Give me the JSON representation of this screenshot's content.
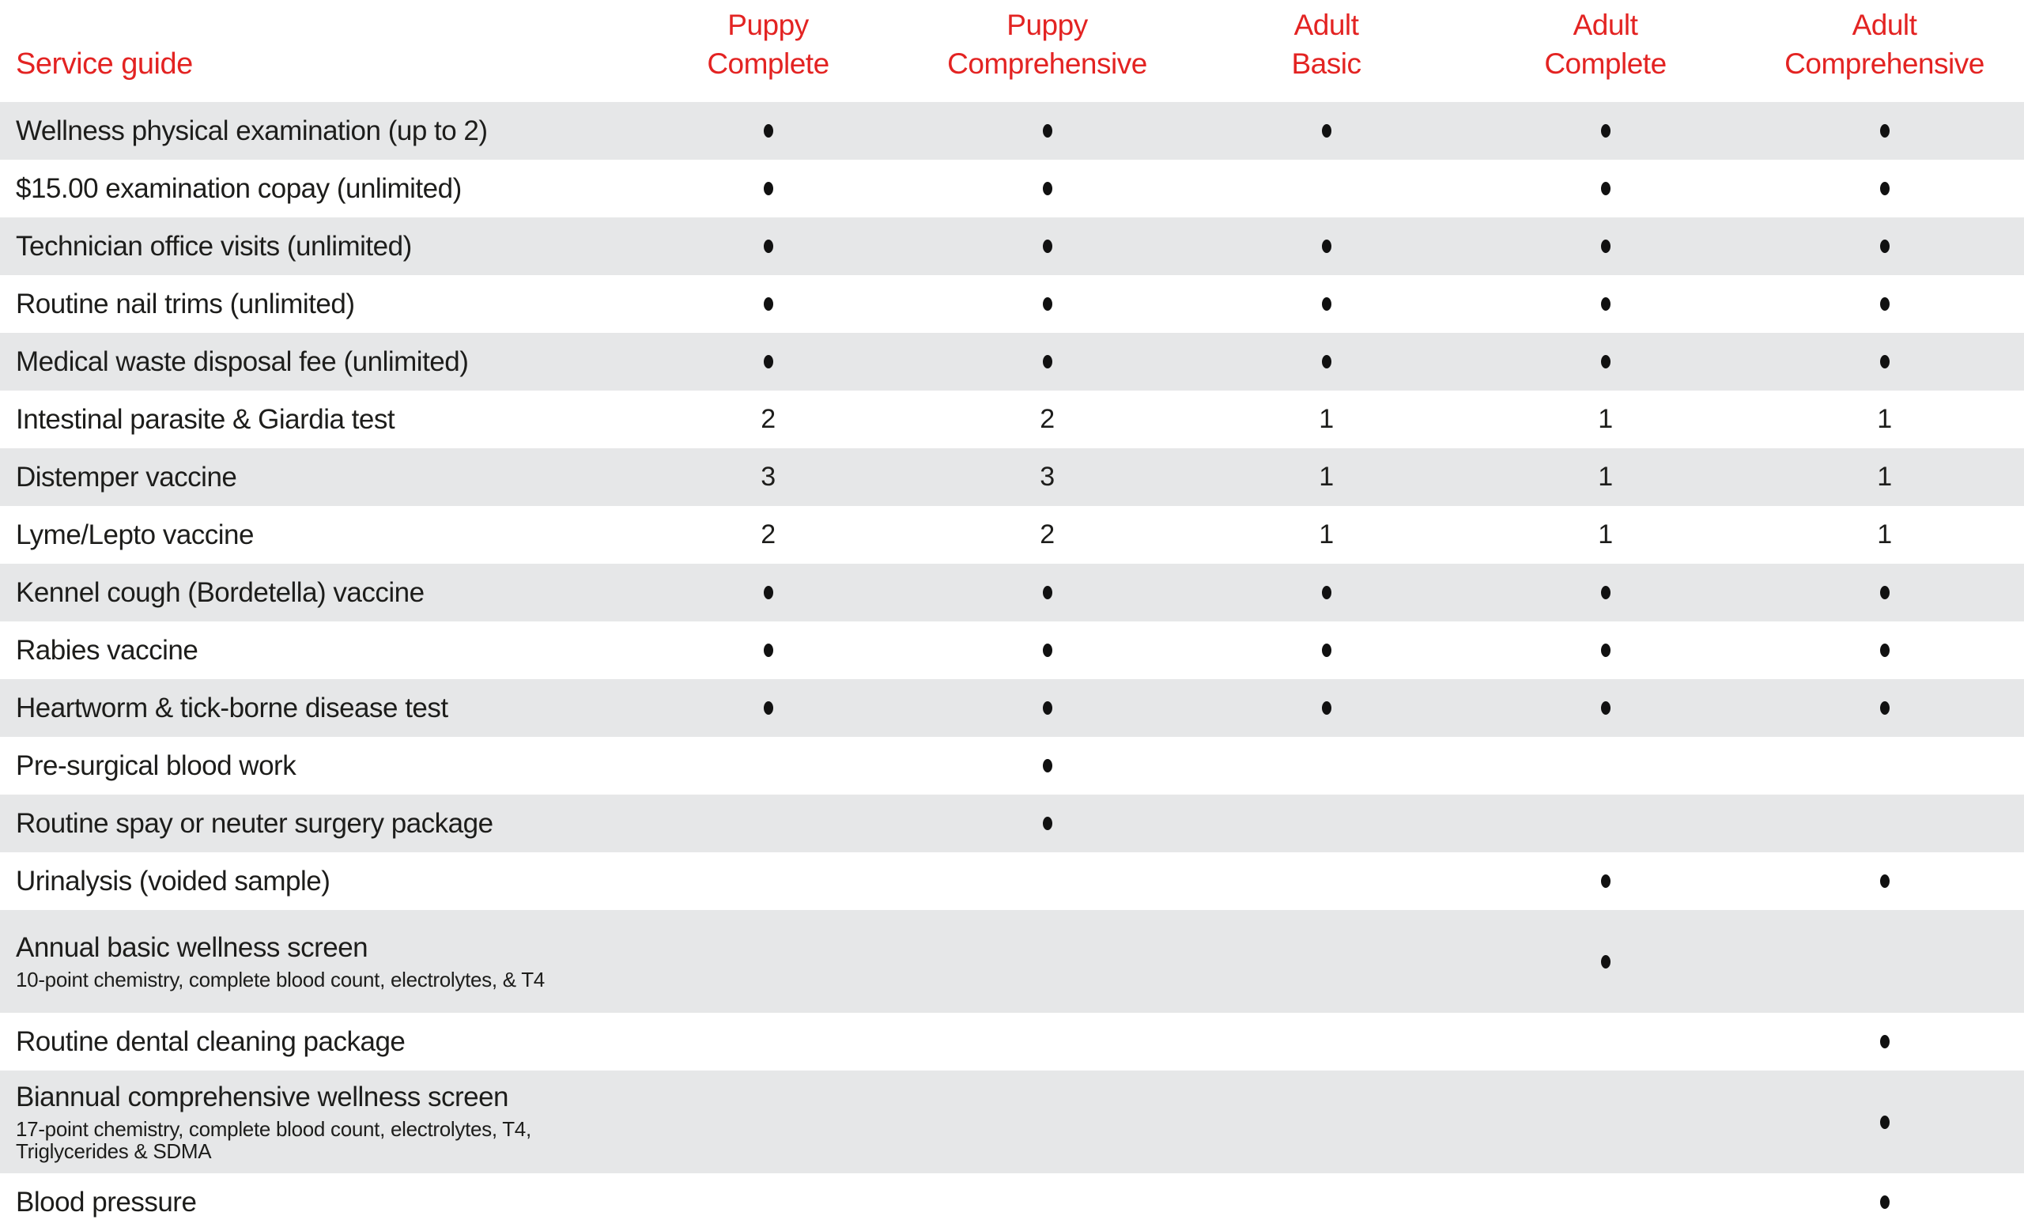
{
  "colors": {
    "accent_red": "#e32322",
    "stripe_gray": "#e6e7e8",
    "text_black": "#1d1d1b",
    "dot_black": "#111111"
  },
  "table": {
    "corner_label": "Service guide",
    "included_marker": "•",
    "columns": [
      {
        "line1": "Puppy",
        "line2": "Complete"
      },
      {
        "line1": "Puppy",
        "line2": "Comprehensive"
      },
      {
        "line1": "Adult",
        "line2": "Basic"
      },
      {
        "line1": "Adult",
        "line2": "Complete"
      },
      {
        "line1": "Adult",
        "line2": "Comprehensive"
      }
    ],
    "rows": [
      {
        "label": "Wellness physical examination (up to 2)",
        "cells": [
          "•",
          "•",
          "•",
          "•",
          "•"
        ]
      },
      {
        "label": "$15.00 examination copay (unlimited)",
        "cells": [
          "•",
          "•",
          "",
          "•",
          "•"
        ]
      },
      {
        "label": "Technician office visits (unlimited)",
        "cells": [
          "•",
          "•",
          "•",
          "•",
          "•"
        ]
      },
      {
        "label": "Routine nail trims (unlimited)",
        "cells": [
          "•",
          "•",
          "•",
          "•",
          "•"
        ]
      },
      {
        "label": "Medical waste disposal fee (unlimited)",
        "cells": [
          "•",
          "•",
          "•",
          "•",
          "•"
        ]
      },
      {
        "label": "Intestinal parasite & Giardia test",
        "cells": [
          "2",
          "2",
          "1",
          "1",
          "1"
        ]
      },
      {
        "label": "Distemper vaccine",
        "cells": [
          "3",
          "3",
          "1",
          "1",
          "1"
        ]
      },
      {
        "label": "Lyme/Lepto vaccine",
        "cells": [
          "2",
          "2",
          "1",
          "1",
          "1"
        ]
      },
      {
        "label": "Kennel cough (Bordetella) vaccine",
        "cells": [
          "•",
          "•",
          "•",
          "•",
          "•"
        ]
      },
      {
        "label": "Rabies vaccine",
        "cells": [
          "•",
          "•",
          "•",
          "•",
          "•"
        ]
      },
      {
        "label": "Heartworm & tick-borne disease test",
        "cells": [
          "•",
          "•",
          "•",
          "•",
          "•"
        ]
      },
      {
        "label": "Pre-surgical blood work",
        "cells": [
          "",
          "•",
          "",
          "",
          ""
        ]
      },
      {
        "label": "Routine spay or neuter surgery package",
        "cells": [
          "",
          "•",
          "",
          "",
          ""
        ]
      },
      {
        "label": "Urinalysis (voided sample)",
        "cells": [
          "",
          "",
          "",
          "•",
          "•"
        ]
      },
      {
        "label": "Annual basic wellness screen",
        "sublabel": "10-point chemistry, complete blood count, electrolytes, & T4",
        "cells": [
          "",
          "",
          "",
          "•",
          ""
        ]
      },
      {
        "label": "Routine dental cleaning package",
        "cells": [
          "",
          "",
          "",
          "",
          "•"
        ]
      },
      {
        "label": "Biannual comprehensive wellness screen",
        "sublabel": "17-point chemistry, complete blood count, electrolytes, T4, Triglycerides & SDMA",
        "cells": [
          "",
          "",
          "",
          "",
          "•"
        ]
      },
      {
        "label": "Blood pressure",
        "cells": [
          "",
          "",
          "",
          "",
          "•"
        ]
      }
    ]
  }
}
